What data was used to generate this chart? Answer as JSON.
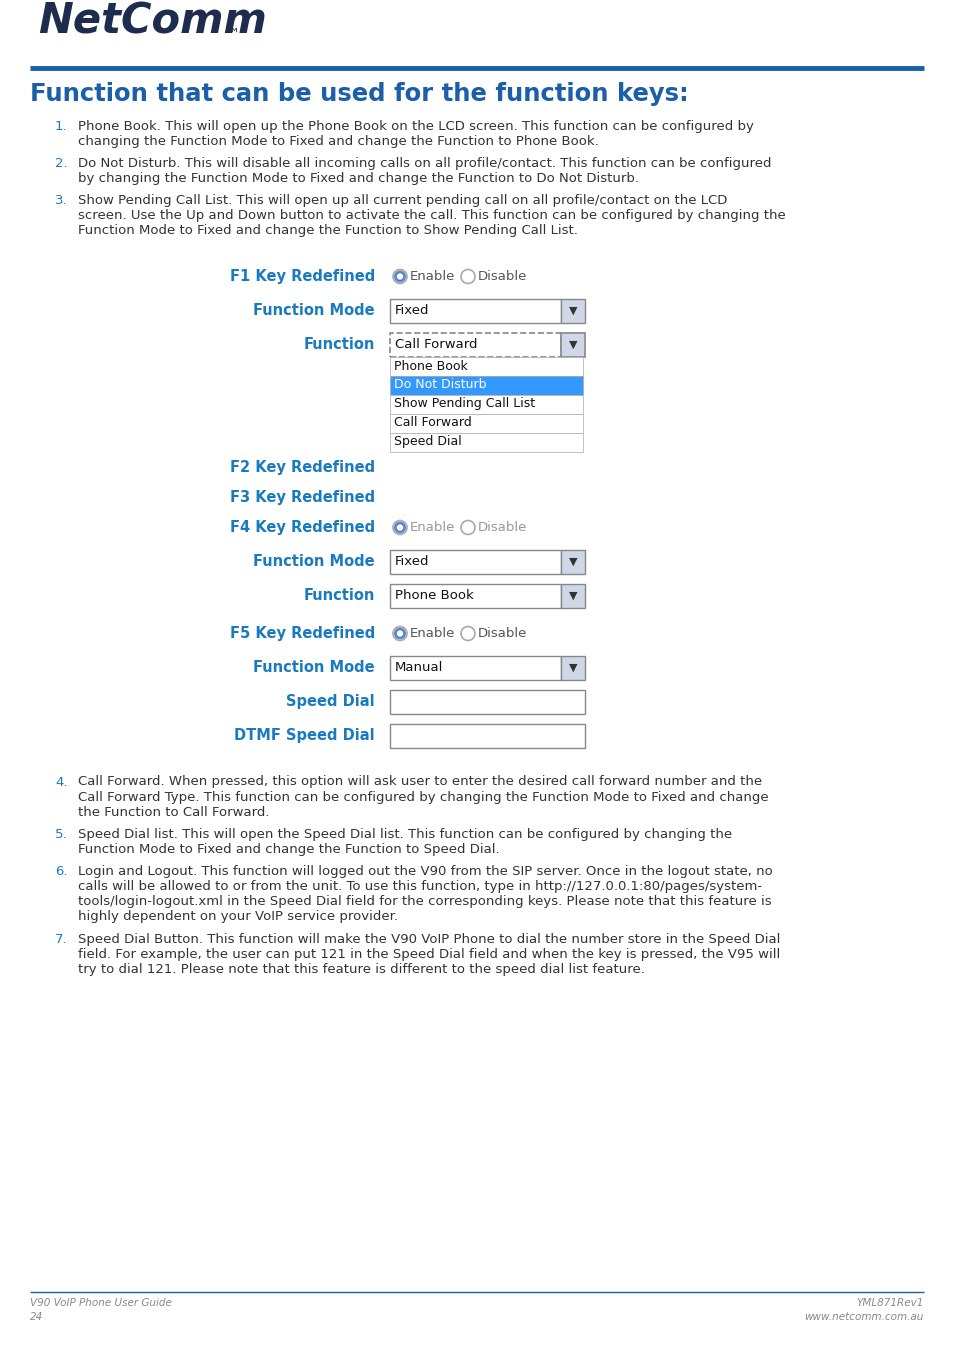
{
  "title": "Function that can be used for the function keys:",
  "header_color": "#1a5fa8",
  "label_color": "#1a7abf",
  "body_text_color": "#333333",
  "num_color": "#1a7abf",
  "background_color": "#ffffff",
  "footer_left_line1": "V90 VoIP Phone User Guide",
  "footer_left_line2": "24",
  "footer_right_line1": "YML871Rev1",
  "footer_right_line2": "www.netcomm.com.au",
  "items_top": [
    {
      "num": "1.",
      "text": "Phone Book. This will open up the Phone Book on the LCD screen. This function can be configured by\nchanging the Function Mode to Fixed and change the Function to Phone Book."
    },
    {
      "num": "2.",
      "text": "Do Not Disturb. This will disable all incoming calls on all profile/contact. This function can be configured\nby changing the Function Mode to Fixed and change the Function to Do Not Disturb."
    },
    {
      "num": "3.",
      "text": "Show Pending Call List. This will open up all current pending call on all profile/contact on the LCD\nscreen. Use the Up and Down button to activate the call. This function can be configured by changing the\nFunction Mode to Fixed and change the Function to Show Pending Call List."
    }
  ],
  "items_bottom": [
    {
      "num": "4.",
      "text": "Call Forward. When pressed, this option will ask user to enter the desired call forward number and the\nCall Forward Type. This function can be configured by changing the Function Mode to Fixed and change\nthe Function to Call Forward."
    },
    {
      "num": "5.",
      "text": "Speed Dial list. This will open the Speed Dial list. This function can be configured by changing the\nFunction Mode to Fixed and change the Function to Speed Dial."
    },
    {
      "num": "6.",
      "text": "Login and Logout. This function will logged out the V90 from the SIP server. Once in the logout state, no\ncalls will be allowed to or from the unit. To use this function, type in http://127.0.0.1:80/pages/system-\ntools/login-logout.xml in the Speed Dial field for the corresponding keys. Please note that this feature is\nhighly dependent on your VoIP service provider."
    },
    {
      "num": "7.",
      "text": "Speed Dial Button. This function will make the V90 VoIP Phone to dial the number store in the Speed Dial\nfield. For example, the user can put 121 in the Speed Dial field and when the key is pressed, the V95 will\ntry to dial 121. Please note that this feature is different to the speed dial list feature."
    }
  ],
  "dropdown_options": [
    "Phone Book",
    "Do Not Disturb",
    "Show Pending Call List",
    "Call Forward",
    "Speed Dial"
  ],
  "dropdown_highlight": "Do Not Disturb",
  "line_color": "#1a5fa8",
  "footer_color": "#888888",
  "logo_color": "#1e2d4e"
}
